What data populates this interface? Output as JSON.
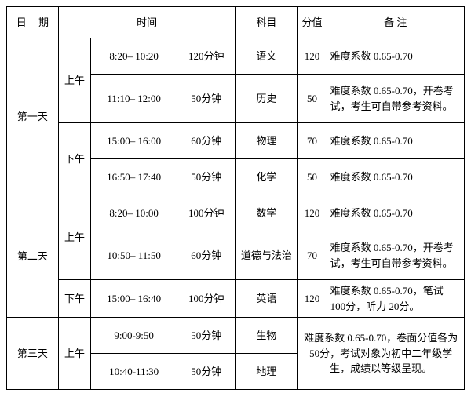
{
  "headers": {
    "date": "日 期",
    "time": "时间",
    "subject": "科目",
    "score": "分值",
    "note": "备 注"
  },
  "periods": {
    "am": "上午",
    "pm": "下午"
  },
  "days": {
    "d1": "第一天",
    "d2": "第二天",
    "d3": "第三天"
  },
  "rows": {
    "r1": {
      "time": "8:20– 10:20",
      "dur": "120分钟",
      "subj": "语文",
      "score": "120",
      "note": "难度系数 0.65-0.70"
    },
    "r2": {
      "time": "11:10– 12:00",
      "dur": "50分钟",
      "subj": "历史",
      "score": "50",
      "note": "难度系数 0.65-0.70，开卷考试，考生可自带参考资料。"
    },
    "r3": {
      "time": "15:00– 16:00",
      "dur": "60分钟",
      "subj": "物理",
      "score": "70",
      "note": "难度系数 0.65-0.70"
    },
    "r4": {
      "time": "16:50– 17:40",
      "dur": "50分钟",
      "subj": "化学",
      "score": "50",
      "note": "难度系数 0.65-0.70"
    },
    "r5": {
      "time": "8:20– 10:00",
      "dur": "100分钟",
      "subj": "数学",
      "score": "120",
      "note": "难度系数 0.65-0.70"
    },
    "r6": {
      "time": "10:50– 11:50",
      "dur": "60分钟",
      "subj": "道德与法治",
      "score": "70",
      "note": "难度系数 0.65-0.70，开卷考试，考生可自带参考资料。"
    },
    "r7": {
      "time": "15:00– 16:40",
      "dur": "100分钟",
      "subj": "英语",
      "score": "120",
      "note": "难度系数 0.65-0.70，笔试 100分，听力 20分。"
    },
    "r8": {
      "time": "9:00-9:50",
      "dur": "50分钟",
      "subj": "生物",
      "score": "",
      "note": "难度系数 0.65-0.70，卷面分值各为 50分，考试对象为初中二年级学生，成绩以等级呈现。"
    },
    "r9": {
      "time": "10:40-11:30",
      "dur": "50分钟",
      "subj": "地理",
      "score": ""
    }
  }
}
